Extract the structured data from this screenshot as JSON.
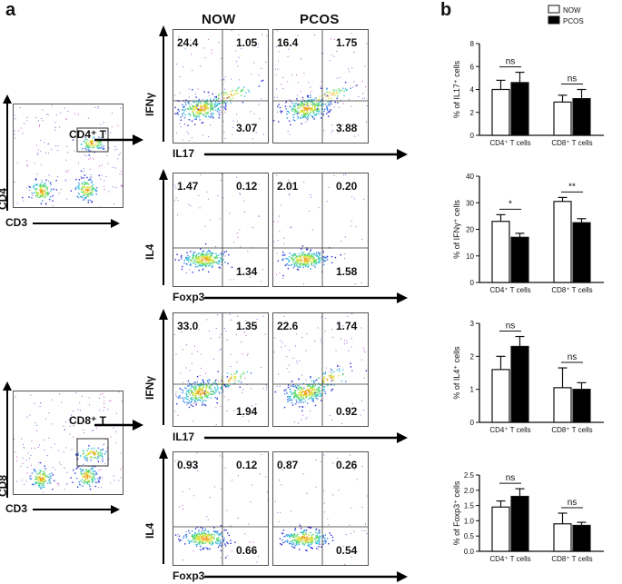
{
  "panel_a": {
    "letter": "a",
    "columns": [
      "NOW",
      "PCOS"
    ],
    "gates": [
      {
        "gate_label": "CD4⁺ T",
        "y_axis": "CD4",
        "x_axis": "CD3"
      },
      {
        "gate_label": "CD8⁺ T",
        "y_axis": "CD8",
        "x_axis": "CD3"
      }
    ],
    "rows": [
      {
        "y_label": "IFNγ",
        "x_label": "IL17",
        "now": {
          "ul": "24.4",
          "ur": "1.05",
          "lr": "3.07"
        },
        "pcos": {
          "ul": "16.4",
          "ur": "1.75",
          "lr": "3.88"
        }
      },
      {
        "y_label": "IL4",
        "x_label": "Foxp3",
        "now": {
          "ul": "1.47",
          "ur": "0.12",
          "lr": "1.34"
        },
        "pcos": {
          "ul": "2.01",
          "ur": "0.20",
          "lr": "1.58"
        }
      },
      {
        "y_label": "IFNγ",
        "x_label": "IL17",
        "now": {
          "ul": "33.0",
          "ur": "1.35",
          "lr": "1.94"
        },
        "pcos": {
          "ul": "22.6",
          "ur": "1.74",
          "lr": "0.92"
        }
      },
      {
        "y_label": "IL4",
        "x_label": "Foxp3",
        "now": {
          "ul": "0.93",
          "ur": "0.12",
          "lr": "0.66"
        },
        "pcos": {
          "ul": "0.87",
          "ur": "0.26",
          "lr": "0.54"
        }
      }
    ]
  },
  "panel_b": {
    "letter": "b"
  },
  "chart_data": [
    {
      "type": "bar",
      "ylabel": "% of IL17⁺ cells",
      "ylim": [
        0,
        8
      ],
      "yticks": [
        "0",
        "2",
        "4",
        "6",
        "8"
      ],
      "categories": [
        "CD4⁺ T cells",
        "CD8⁺ T cells"
      ],
      "legend": [
        "NOW",
        "PCOS"
      ],
      "series": [
        {
          "name": "NOW",
          "values": [
            4.0,
            2.9
          ],
          "errors": [
            0.8,
            0.6
          ]
        },
        {
          "name": "PCOS",
          "values": [
            4.6,
            3.2
          ],
          "errors": [
            0.9,
            0.8
          ]
        }
      ],
      "significance": [
        "ns",
        "ns"
      ]
    },
    {
      "type": "bar",
      "ylabel": "% of IFNγ⁺ cells",
      "ylim": [
        0,
        40
      ],
      "yticks": [
        "0",
        "10",
        "20",
        "30",
        "40"
      ],
      "categories": [
        "CD4⁺ T cells",
        "CD8⁺ T cells"
      ],
      "series": [
        {
          "name": "NOW",
          "values": [
            23,
            30.5
          ],
          "errors": [
            2.5,
            1.5
          ]
        },
        {
          "name": "PCOS",
          "values": [
            17,
            22.5
          ],
          "errors": [
            1.5,
            1.5
          ]
        }
      ],
      "significance": [
        "*",
        "**"
      ]
    },
    {
      "type": "bar",
      "ylabel": "% of IL4⁺ cells",
      "ylim": [
        0,
        3
      ],
      "yticks": [
        "0",
        "1",
        "2",
        "3"
      ],
      "categories": [
        "CD4⁺ T cells",
        "CD8⁺ T cells"
      ],
      "series": [
        {
          "name": "NOW",
          "values": [
            1.6,
            1.05
          ],
          "errors": [
            0.4,
            0.6
          ]
        },
        {
          "name": "PCOS",
          "values": [
            2.3,
            1.0
          ],
          "errors": [
            0.3,
            0.2
          ]
        }
      ],
      "significance": [
        "ns",
        "ns"
      ]
    },
    {
      "type": "bar",
      "ylabel": "% of Foxp3⁺ cells",
      "ylim": [
        0,
        2.5
      ],
      "yticks": [
        "0.0",
        "0.5",
        "1.0",
        "1.5",
        "2.0",
        "2.5"
      ],
      "categories": [
        "CD4⁺ T cells",
        "CD8⁺ T cells"
      ],
      "series": [
        {
          "name": "NOW",
          "values": [
            1.45,
            0.9
          ],
          "errors": [
            0.2,
            0.35
          ]
        },
        {
          "name": "PCOS",
          "values": [
            1.8,
            0.85
          ],
          "errors": [
            0.25,
            0.1
          ]
        }
      ],
      "significance": [
        "ns",
        "ns"
      ]
    }
  ],
  "colors": {
    "now_fill": "#ffffff",
    "pcos_fill": "#000000",
    "axis": "#111111"
  }
}
